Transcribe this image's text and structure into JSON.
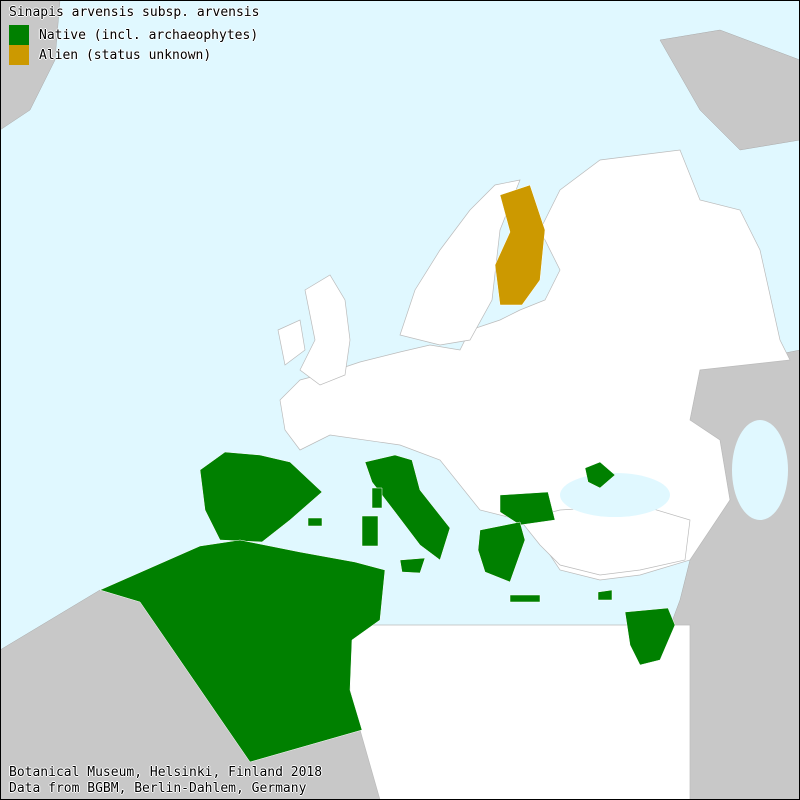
{
  "title": "Sinapis arvensis subsp. arvensis",
  "legend": [
    {
      "label": "Native (incl. archaeophytes)",
      "color": "#008000"
    },
    {
      "label": "Alien (status unknown)",
      "color": "#cc9900"
    }
  ],
  "footer": {
    "line1": "Botanical Museum, Helsinki, Finland 2018",
    "line2": "Data from BGBM, Berlin-Dahlem, Germany"
  },
  "colors": {
    "sea": "#e0f8ff",
    "outside_area": "#c8c8c8",
    "no_record": "#ffffff",
    "native": "#008000",
    "alien": "#cc9900"
  },
  "regions": {
    "native": [
      "Spain",
      "Portugal",
      "Italy",
      "Sicily",
      "Sardinia",
      "Corsica",
      "Balearic Islands",
      "Bulgaria",
      "Greece",
      "Crimea",
      "Crete",
      "Cyprus",
      "Morocco",
      "Algeria",
      "Tunisia",
      "Israel",
      "Jordan",
      "Lebanon-Syria",
      "European Turkey"
    ],
    "alien": [
      "Finland"
    ]
  }
}
